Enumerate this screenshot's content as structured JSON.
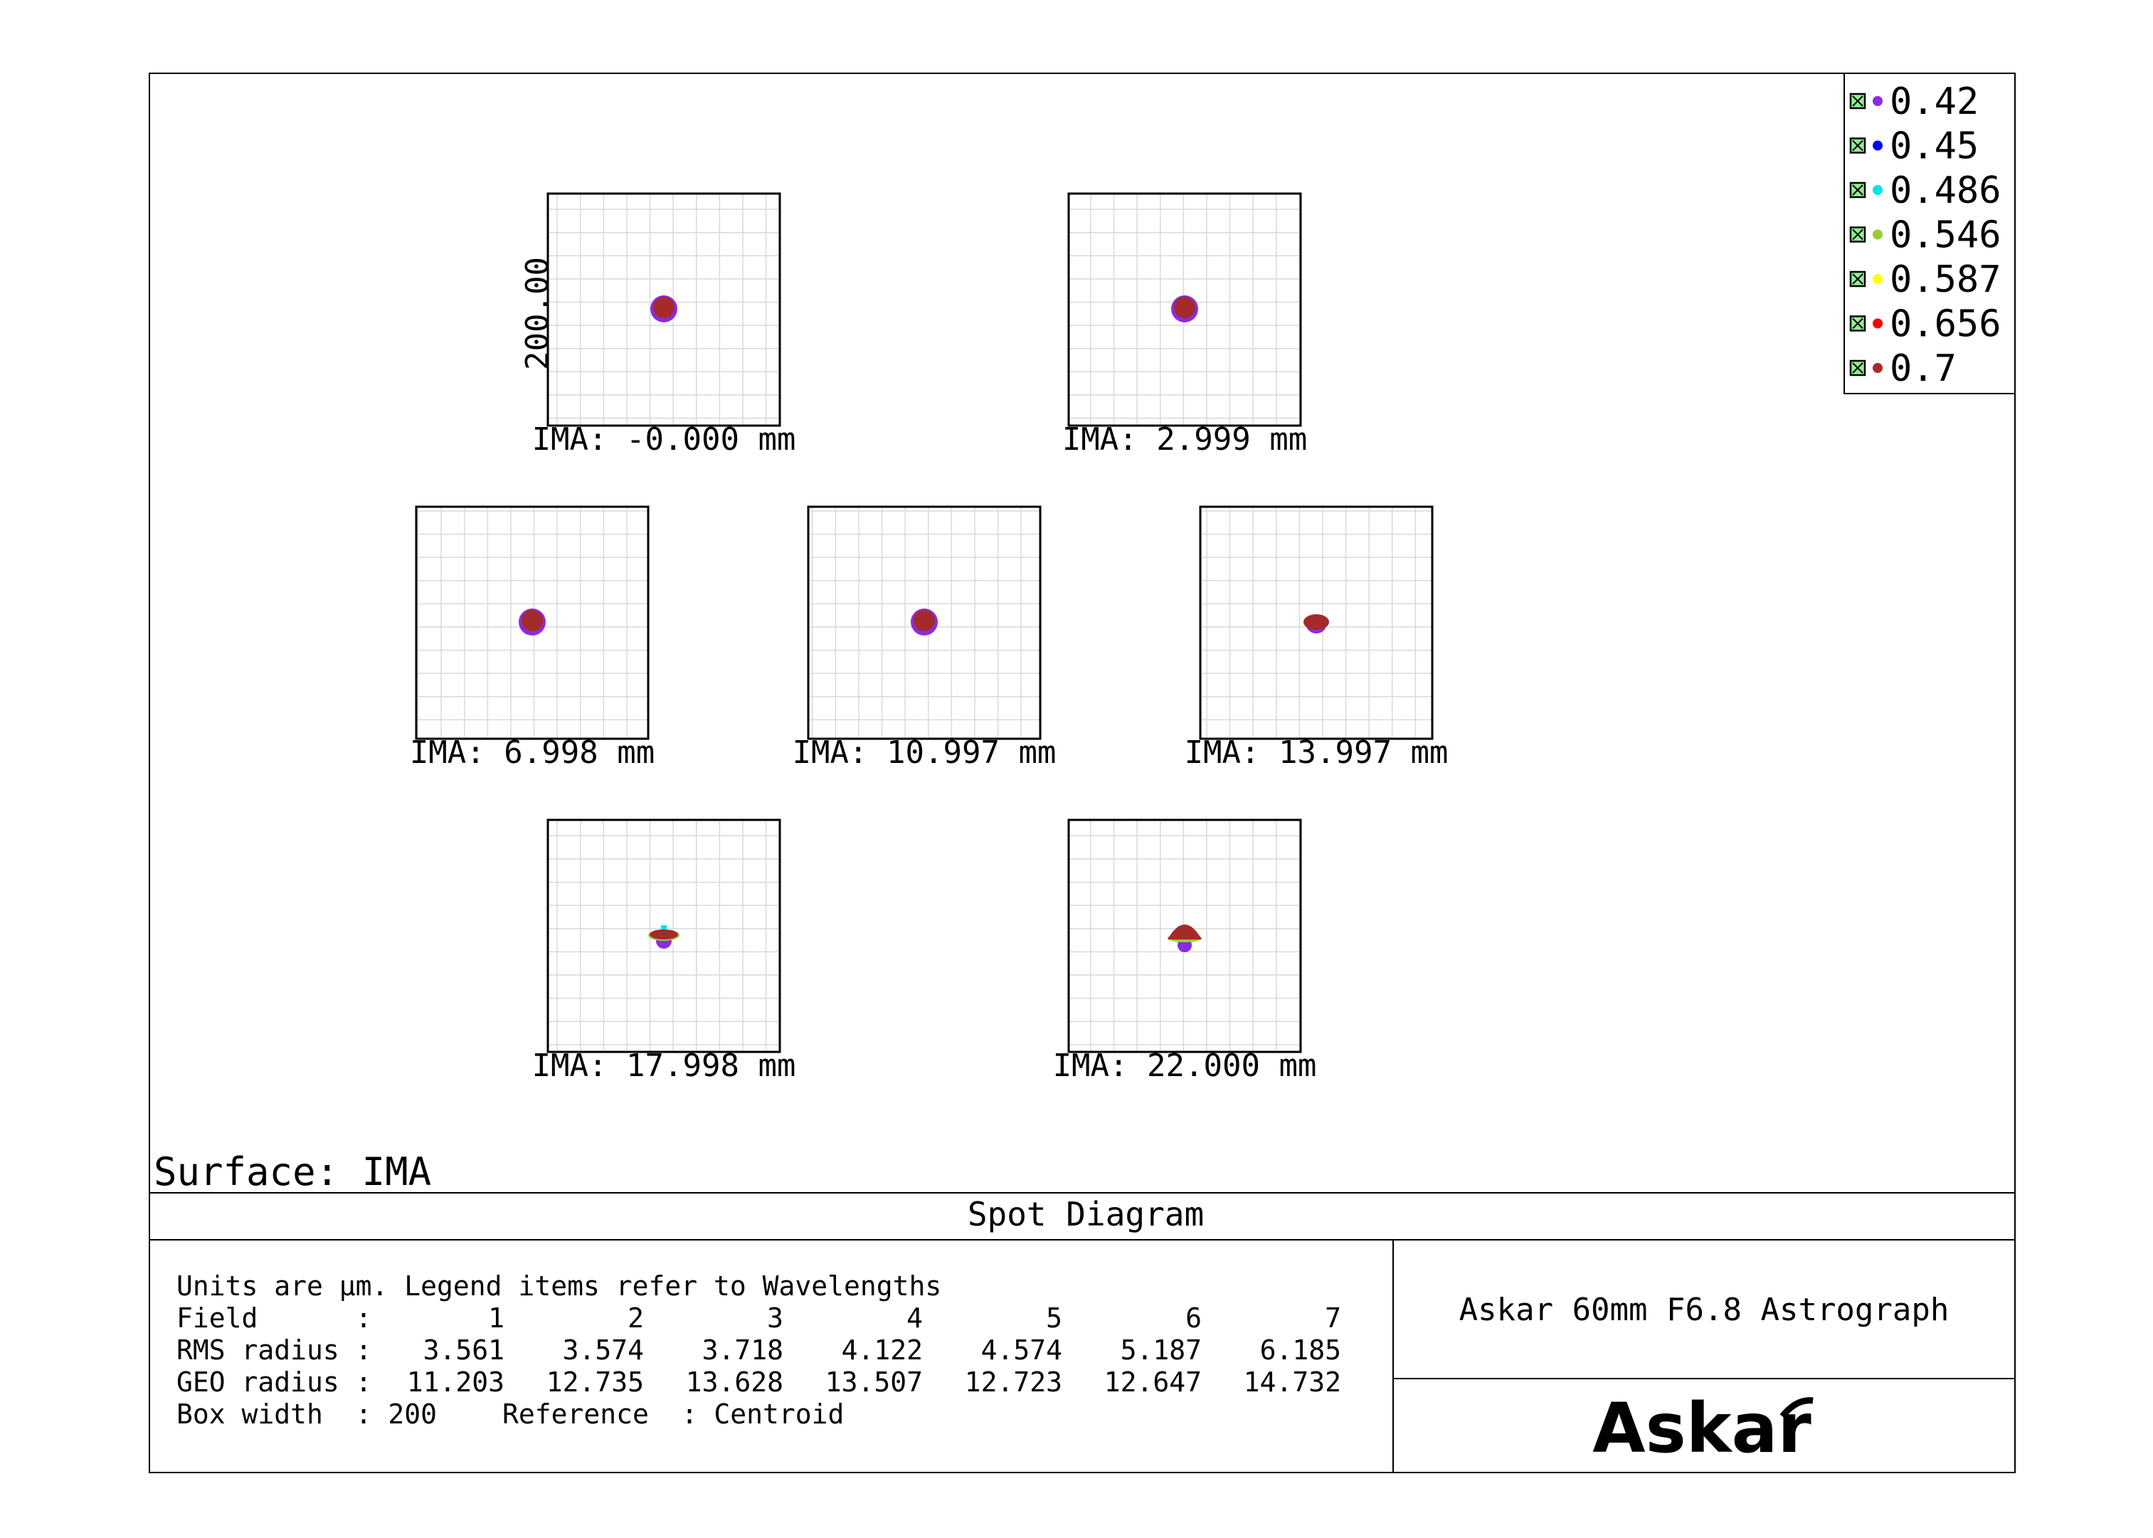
{
  "legend": {
    "items": [
      {
        "label": "0.42",
        "color": "#8a2be2"
      },
      {
        "label": "0.45",
        "color": "#0000ff"
      },
      {
        "label": "0.486",
        "color": "#00e5e5"
      },
      {
        "label": "0.546",
        "color": "#9acd32"
      },
      {
        "label": "0.587",
        "color": "#ffff00"
      },
      {
        "label": "0.656",
        "color": "#ff0000"
      },
      {
        "label": "0.7",
        "color": "#a52a2a"
      }
    ]
  },
  "scale_label": "200.00",
  "fields": [
    {
      "label": "IMA: -0.000 mm",
      "spot": "round"
    },
    {
      "label": "IMA: 2.999 mm",
      "spot": "round"
    },
    {
      "label": "IMA: 6.998 mm",
      "spot": "round"
    },
    {
      "label": "IMA: 10.997 mm",
      "spot": "round"
    },
    {
      "label": "IMA: 13.997 mm",
      "spot": "flat"
    },
    {
      "label": "IMA: 17.998 mm",
      "spot": "fan"
    },
    {
      "label": "IMA: 22.000 mm",
      "spot": "cone"
    }
  ],
  "surface_label": "Surface: IMA",
  "plot_title": "Spot Diagram",
  "info": {
    "line1": "Units are µm. Legend items refer to Wavelengths",
    "row_field": {
      "label": "Field      :",
      "values": [
        "1",
        "2",
        "3",
        "4",
        "5",
        "6",
        "7"
      ]
    },
    "row_rms": {
      "label": "RMS radius :",
      "values": [
        "3.561",
        "3.574",
        "3.718",
        "4.122",
        "4.574",
        "5.187",
        "6.185"
      ]
    },
    "row_geo": {
      "label": "GEO radius :",
      "values": [
        "11.203",
        "12.735",
        "13.628",
        "13.507",
        "12.723",
        "12.647",
        "14.732"
      ]
    },
    "box_width": "Box width  : 200",
    "reference": "Reference  : Centroid"
  },
  "system_name": "Askar 60mm F6.8 Astrograph",
  "logo": "Askar"
}
